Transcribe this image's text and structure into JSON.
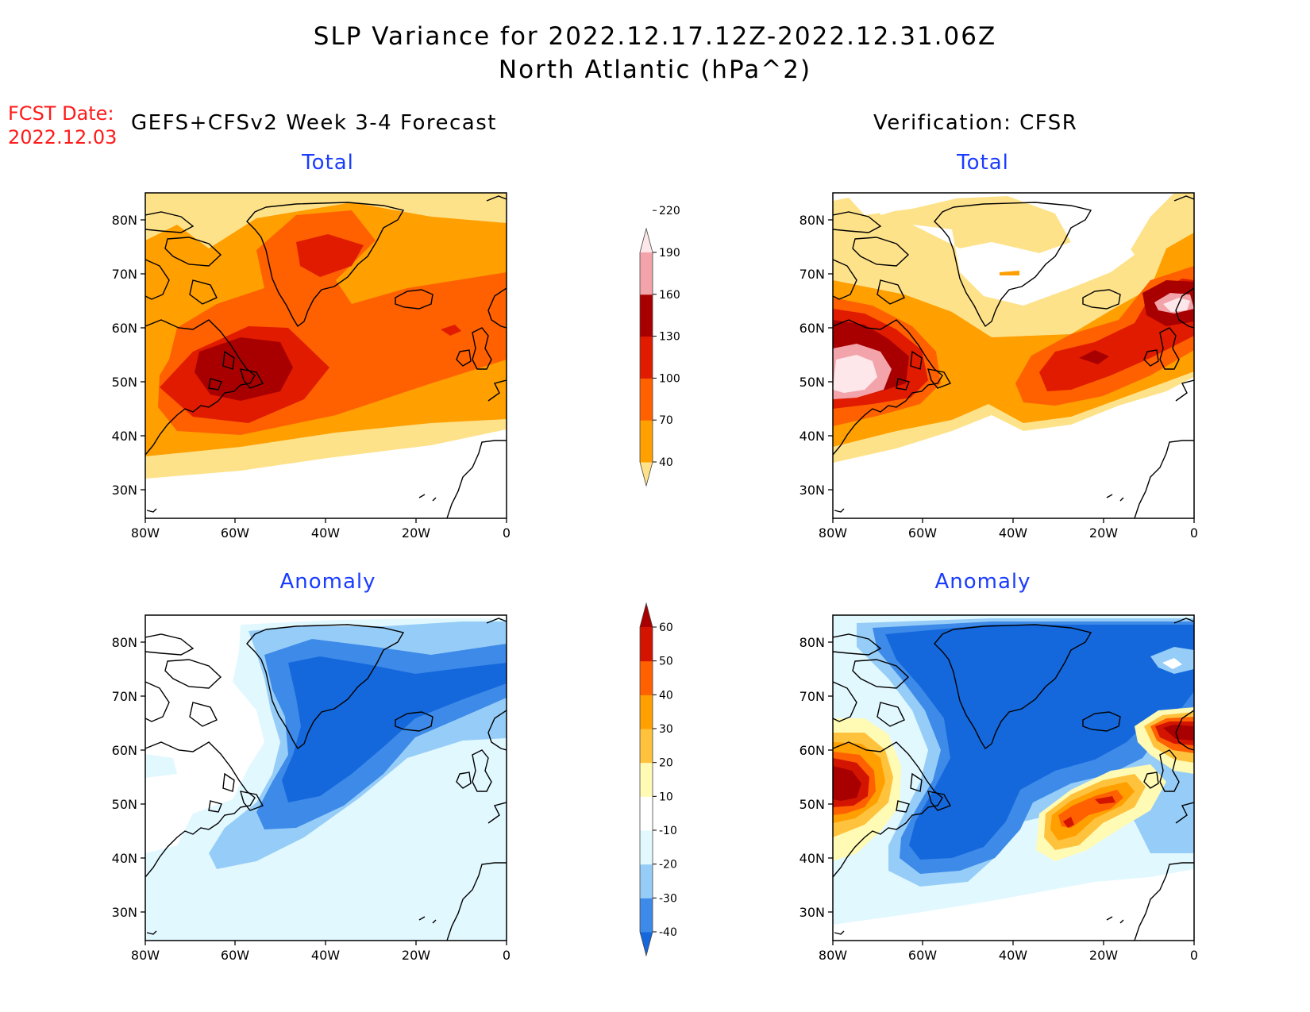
{
  "header": {
    "title_line1": "SLP Variance for 2022.12.17.12Z-2022.12.31.06Z",
    "title_line2": "North Atlantic (hPa^2)",
    "fcst_label": "FCST Date:",
    "fcst_date": "2022.12.03",
    "left_column": "GEFS+CFSv2 Week 3-4 Forecast",
    "right_column": "Verification: CFSR"
  },
  "panels": [
    {
      "id": "fcst-total",
      "title": "Total"
    },
    {
      "id": "verif-total",
      "title": "Total"
    },
    {
      "id": "fcst-anomaly",
      "title": "Anomaly"
    },
    {
      "id": "verif-anomaly",
      "title": "Anomaly"
    }
  ],
  "axes": {
    "lat_ticks": [
      "80N",
      "70N",
      "60N",
      "50N",
      "40N",
      "30N"
    ],
    "lon_ticks": [
      "80W",
      "60W",
      "40W",
      "20W",
      "0"
    ]
  },
  "colorbars": {
    "total": {
      "labels": [
        "40",
        "70",
        "100",
        "130",
        "160",
        "190",
        "220"
      ],
      "colors": [
        "#fee28a",
        "#ff9f00",
        "#ff6000",
        "#e01b00",
        "#a80000",
        "#f2a4aa",
        "#fde7ea"
      ]
    },
    "anomaly": {
      "labels": [
        "-40",
        "-30",
        "-20",
        "-10",
        "10",
        "20",
        "30",
        "40",
        "50",
        "60"
      ],
      "colors": [
        "#1468dc",
        "#3d8ae8",
        "#96cdf8",
        "#e2f8ff",
        "#ffffff",
        "#fffab4",
        "#ffc23c",
        "#ff9f00",
        "#ff6000",
        "#d21400",
        "#a80000"
      ]
    }
  }
}
